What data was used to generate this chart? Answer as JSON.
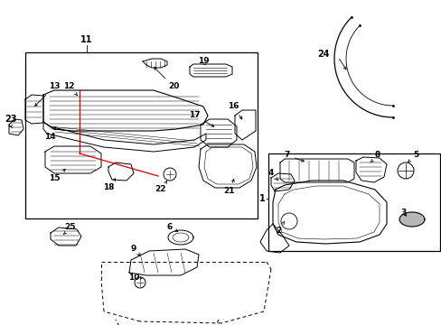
{
  "bg_color": "#ffffff",
  "line_color": "#000000",
  "red_line_color": "#cc0000",
  "fs": 6.5,
  "fig_width": 4.89,
  "fig_height": 3.6,
  "dpi": 100
}
